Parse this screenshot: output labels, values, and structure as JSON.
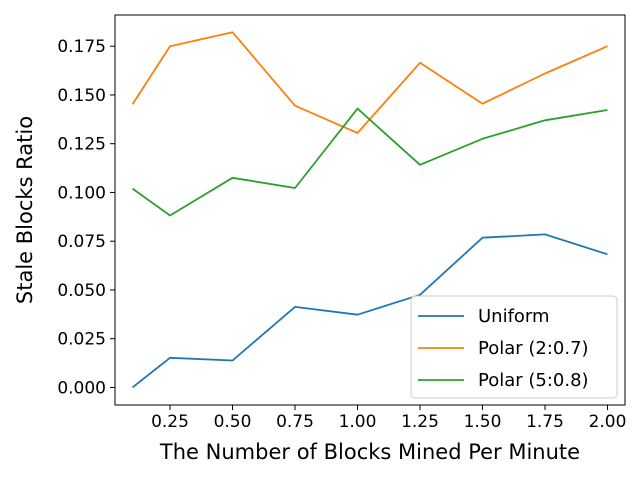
{
  "chart_data": {
    "type": "line",
    "xlabel": "The Number of Blocks Mined Per Minute",
    "ylabel": "Stale Blocks Ratio",
    "x": [
      0.1,
      0.25,
      0.5,
      0.75,
      1.0,
      1.25,
      1.5,
      1.75,
      2.0
    ],
    "xlim": [
      0.03,
      2.07
    ],
    "ylim": [
      -0.009,
      0.191
    ],
    "xticks": [
      0.25,
      0.5,
      0.75,
      1.0,
      1.25,
      1.5,
      1.75,
      2.0
    ],
    "xtick_labels": [
      "0.25",
      "0.50",
      "0.75",
      "1.00",
      "1.25",
      "1.50",
      "1.75",
      "2.00"
    ],
    "yticks": [
      0.0,
      0.025,
      0.05,
      0.075,
      0.1,
      0.125,
      0.15,
      0.175
    ],
    "ytick_labels": [
      "0.000",
      "0.025",
      "0.050",
      "0.075",
      "0.100",
      "0.125",
      "0.150",
      "0.175"
    ],
    "grid": false,
    "legend_position": "bottom-right",
    "series": [
      {
        "name": "Uniform",
        "color": "#1f77b4",
        "values": [
          0.0,
          0.0152,
          0.0138,
          0.0413,
          0.0373,
          0.0475,
          0.0768,
          0.0785,
          0.0683
        ]
      },
      {
        "name": "Polar (2:0.7)",
        "color": "#ff7f0e",
        "values": [
          0.1452,
          0.175,
          0.1822,
          0.1445,
          0.1305,
          0.1665,
          0.1455,
          0.161,
          0.175
        ]
      },
      {
        "name": "Polar (5:0.8)",
        "color": "#2ca02c",
        "values": [
          0.102,
          0.0882,
          0.1075,
          0.1023,
          0.143,
          0.1142,
          0.1275,
          0.137,
          0.1423
        ]
      }
    ]
  }
}
